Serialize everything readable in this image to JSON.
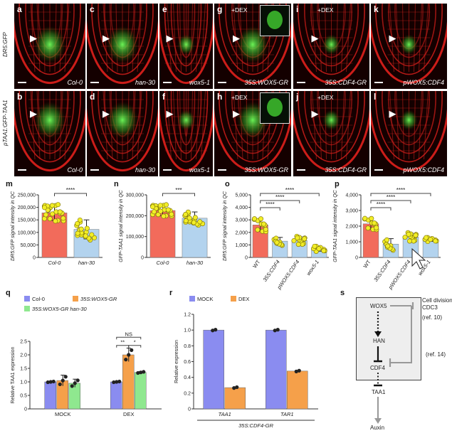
{
  "row_labels": {
    "top": "DR5:GFP",
    "bottom": "pTAA1:GFP-TAA1"
  },
  "micrographs": [
    {
      "letter": "a",
      "caption": "Col-0",
      "dex": ""
    },
    {
      "letter": "c",
      "caption": "han-30",
      "dex": ""
    },
    {
      "letter": "e",
      "caption": "wox5-1",
      "dex": ""
    },
    {
      "letter": "g",
      "caption": "35S:WOX5-GR",
      "dex": "+DEX"
    },
    {
      "letter": "i",
      "caption": "35S:CDF4-GR",
      "dex": "+DEX"
    },
    {
      "letter": "k",
      "caption": "pWOX5:CDF4",
      "dex": ""
    },
    {
      "letter": "b",
      "caption": "Col-0",
      "dex": ""
    },
    {
      "letter": "d",
      "caption": "han-30",
      "dex": ""
    },
    {
      "letter": "f",
      "caption": "wox5-1",
      "dex": ""
    },
    {
      "letter": "h",
      "caption": "35S:WOX5-GR",
      "dex": "+DEX"
    },
    {
      "letter": "j",
      "caption": "35S:CDF4-GR",
      "dex": "+DEX"
    },
    {
      "letter": "l",
      "caption": "pWOX5:CDF4",
      "dex": ""
    }
  ],
  "panel_letters": {
    "m": "m",
    "n": "n",
    "o": "o",
    "p": "p",
    "q": "q",
    "r": "r",
    "s": "s"
  },
  "chart_data": [
    {
      "id": "m",
      "type": "bar",
      "ylabel": "DR5:GFP signal intensity in QC",
      "ylim": [
        0,
        250000
      ],
      "yticks": [
        "0",
        "50,000",
        "100,000",
        "150,000",
        "200,000",
        "250,000"
      ],
      "categories": [
        "Col-0",
        "han-30"
      ],
      "values": [
        178000,
        112000
      ],
      "errors": [
        30000,
        38000
      ],
      "colors": [
        "#f26b5b",
        "#b3d3ee"
      ],
      "significance": [
        {
          "from": 0,
          "to": 1,
          "label": "****"
        }
      ]
    },
    {
      "id": "n",
      "type": "bar",
      "ylabel": "GFP-TAA1 signal intensity in QC",
      "ylim": [
        0,
        300000
      ],
      "yticks": [
        "0",
        "100,000",
        "200,000",
        "300,000"
      ],
      "categories": [
        "Col-0",
        "han-30"
      ],
      "values": [
        225000,
        188000
      ],
      "errors": [
        25000,
        30000
      ],
      "colors": [
        "#f26b5b",
        "#b3d3ee"
      ],
      "significance": [
        {
          "from": 0,
          "to": 1,
          "label": "***"
        }
      ]
    },
    {
      "id": "o",
      "type": "bar",
      "ylabel": "DR5:GFP signal intensity in QC",
      "ylim": [
        0,
        5000
      ],
      "yticks": [
        "0",
        "1,000",
        "2,000",
        "3,000",
        "4,000",
        "5,000"
      ],
      "categories": [
        "WT",
        "35S:CDF4",
        "pWOX5:CDF4",
        "wox5-1"
      ],
      "values": [
        2600,
        1300,
        1350,
        700
      ],
      "errors": [
        500,
        300,
        300,
        200
      ],
      "colors": [
        "#f26b5b",
        "#b3d3ee",
        "#b3d3ee",
        "#b3d3ee"
      ],
      "significance": [
        {
          "from": 0,
          "to": 1,
          "label": "****"
        },
        {
          "from": 0,
          "to": 2,
          "label": "****"
        },
        {
          "from": 0,
          "to": 3,
          "label": "****"
        }
      ]
    },
    {
      "id": "p",
      "type": "bar",
      "ylabel": "GFP-TAA1 signal intensity in QC",
      "ylim": [
        0,
        4000
      ],
      "yticks": [
        "0",
        "1,000",
        "2,000",
        "3,000",
        "4,000"
      ],
      "categories": [
        "WT",
        "35S:CDF4",
        "pWOX5:CDF4",
        "wox5-1"
      ],
      "values": [
        2150,
        850,
        1300,
        1150
      ],
      "errors": [
        350,
        350,
        250,
        120
      ],
      "colors": [
        "#f26b5b",
        "#b3d3ee",
        "#b3d3ee",
        "#b3d3ee"
      ],
      "significance": [
        {
          "from": 0,
          "to": 1,
          "label": "****"
        },
        {
          "from": 0,
          "to": 2,
          "label": "****"
        },
        {
          "from": 0,
          "to": 3,
          "label": "****"
        }
      ]
    },
    {
      "id": "q",
      "type": "bar",
      "ylabel": "Relative TAA1 expression",
      "ylim": [
        0,
        2.5
      ],
      "yticks": [
        "0",
        "0.5",
        "1.0",
        "1.5",
        "2.0",
        "2.5"
      ],
      "groups": [
        "MOCK",
        "DEX"
      ],
      "series": [
        {
          "name": "Col-0",
          "color": "#8a8cf0",
          "values": [
            1.0,
            1.0
          ],
          "errors": [
            0.02,
            0.02
          ]
        },
        {
          "name": "35S:WOX5-GR",
          "color": "#f5a04a",
          "values": [
            1.05,
            2.0
          ],
          "errors": [
            0.2,
            0.25
          ]
        },
        {
          "name": "35S:WOX5-GR han-30",
          "color": "#8fe88f",
          "values": [
            0.95,
            1.35
          ],
          "errors": [
            0.15,
            0.03
          ]
        }
      ],
      "significance": [
        {
          "label": "**"
        },
        {
          "label": "*"
        },
        {
          "label": "NS"
        }
      ]
    },
    {
      "id": "r",
      "type": "bar",
      "ylabel": "Relative expression",
      "ylim": [
        0,
        1.2
      ],
      "yticks": [
        "0",
        "0.2",
        "0.4",
        "0.6",
        "0.8",
        "1.0",
        "1.2"
      ],
      "groups": [
        "TAA1",
        "TAR1"
      ],
      "xlabel": "35S:CDF4-GR",
      "series": [
        {
          "name": "MOCK",
          "color": "#8a8cf0",
          "values": [
            1.0,
            1.0
          ]
        },
        {
          "name": "DEX",
          "color": "#f5a04a",
          "values": [
            0.27,
            0.48
          ]
        }
      ]
    }
  ],
  "diagram": {
    "wox5": "WOX5",
    "han": "HAN",
    "cdf4": "CDF4",
    "taa1": "TAA1",
    "auxin": "Auxin",
    "cell_div_1": "Cell divisions",
    "cell_div_2": "CDC3",
    "ref1": "(ref. 10)",
    "ref2": "(ref. 14)"
  }
}
